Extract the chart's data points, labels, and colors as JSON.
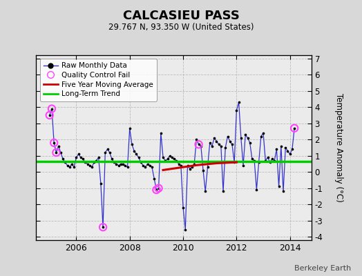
{
  "title": "CALCASIEU PASS",
  "subtitle": "29.767 N, 93.350 W (United States)",
  "ylabel": "Temperature Anomaly (°C)",
  "watermark": "Berkeley Earth",
  "ylim": [
    -4.2,
    7.2
  ],
  "yticks": [
    -4,
    -3,
    -2,
    -1,
    0,
    1,
    2,
    3,
    4,
    5,
    6,
    7
  ],
  "xlim": [
    2004.5,
    2014.8
  ],
  "xticks": [
    2006,
    2008,
    2010,
    2012,
    2014
  ],
  "long_term_trend_y": 0.65,
  "fig_bg_color": "#d8d8d8",
  "plot_bg_color": "#ebebeb",
  "raw_data": [
    [
      2005.0,
      3.5
    ],
    [
      2005.083,
      3.9
    ],
    [
      2005.167,
      1.8
    ],
    [
      2005.25,
      1.2
    ],
    [
      2005.333,
      1.6
    ],
    [
      2005.417,
      1.2
    ],
    [
      2005.5,
      0.8
    ],
    [
      2005.583,
      0.6
    ],
    [
      2005.667,
      0.4
    ],
    [
      2005.75,
      0.3
    ],
    [
      2005.833,
      0.5
    ],
    [
      2005.917,
      0.3
    ],
    [
      2006.0,
      0.9
    ],
    [
      2006.083,
      1.1
    ],
    [
      2006.167,
      0.9
    ],
    [
      2006.25,
      0.8
    ],
    [
      2006.333,
      0.6
    ],
    [
      2006.417,
      0.5
    ],
    [
      2006.5,
      0.4
    ],
    [
      2006.583,
      0.3
    ],
    [
      2006.667,
      0.6
    ],
    [
      2006.75,
      0.7
    ],
    [
      2006.833,
      0.9
    ],
    [
      2006.917,
      -0.7
    ],
    [
      2007.0,
      -3.4
    ],
    [
      2007.083,
      1.2
    ],
    [
      2007.167,
      1.4
    ],
    [
      2007.25,
      1.2
    ],
    [
      2007.333,
      0.8
    ],
    [
      2007.417,
      0.6
    ],
    [
      2007.5,
      0.5
    ],
    [
      2007.583,
      0.4
    ],
    [
      2007.667,
      0.5
    ],
    [
      2007.75,
      0.5
    ],
    [
      2007.833,
      0.4
    ],
    [
      2007.917,
      0.3
    ],
    [
      2008.0,
      2.7
    ],
    [
      2008.083,
      1.7
    ],
    [
      2008.167,
      1.3
    ],
    [
      2008.25,
      1.1
    ],
    [
      2008.333,
      0.9
    ],
    [
      2008.417,
      0.6
    ],
    [
      2008.5,
      0.4
    ],
    [
      2008.583,
      0.3
    ],
    [
      2008.667,
      0.5
    ],
    [
      2008.75,
      0.4
    ],
    [
      2008.833,
      0.3
    ],
    [
      2008.917,
      -0.4
    ],
    [
      2009.0,
      -1.1
    ],
    [
      2009.083,
      -1.0
    ],
    [
      2009.167,
      2.4
    ],
    [
      2009.25,
      0.9
    ],
    [
      2009.333,
      0.7
    ],
    [
      2009.417,
      0.8
    ],
    [
      2009.5,
      1.0
    ],
    [
      2009.583,
      0.9
    ],
    [
      2009.667,
      0.8
    ],
    [
      2009.75,
      0.7
    ],
    [
      2009.833,
      0.5
    ],
    [
      2009.917,
      0.4
    ],
    [
      2010.0,
      -2.2
    ],
    [
      2010.083,
      -3.55
    ],
    [
      2010.167,
      0.4
    ],
    [
      2010.25,
      0.2
    ],
    [
      2010.333,
      0.3
    ],
    [
      2010.417,
      0.5
    ],
    [
      2010.5,
      2.0
    ],
    [
      2010.583,
      1.7
    ],
    [
      2010.667,
      1.6
    ],
    [
      2010.75,
      0.1
    ],
    [
      2010.833,
      -1.2
    ],
    [
      2010.917,
      0.3
    ],
    [
      2011.0,
      1.8
    ],
    [
      2011.083,
      1.6
    ],
    [
      2011.167,
      2.1
    ],
    [
      2011.25,
      1.9
    ],
    [
      2011.333,
      1.7
    ],
    [
      2011.417,
      1.6
    ],
    [
      2011.5,
      -1.2
    ],
    [
      2011.583,
      1.5
    ],
    [
      2011.667,
      2.2
    ],
    [
      2011.75,
      1.9
    ],
    [
      2011.833,
      1.7
    ],
    [
      2011.917,
      0.6
    ],
    [
      2012.0,
      3.8
    ],
    [
      2012.083,
      4.3
    ],
    [
      2012.167,
      2.1
    ],
    [
      2012.25,
      0.4
    ],
    [
      2012.333,
      2.3
    ],
    [
      2012.417,
      2.1
    ],
    [
      2012.5,
      1.8
    ],
    [
      2012.583,
      0.8
    ],
    [
      2012.667,
      0.7
    ],
    [
      2012.75,
      -1.1
    ],
    [
      2012.833,
      0.6
    ],
    [
      2012.917,
      2.2
    ],
    [
      2013.0,
      2.4
    ],
    [
      2013.083,
      0.7
    ],
    [
      2013.167,
      0.9
    ],
    [
      2013.25,
      0.6
    ],
    [
      2013.333,
      0.8
    ],
    [
      2013.417,
      0.7
    ],
    [
      2013.5,
      1.4
    ],
    [
      2013.583,
      -0.9
    ],
    [
      2013.667,
      1.6
    ],
    [
      2013.75,
      -1.2
    ],
    [
      2013.833,
      1.5
    ],
    [
      2013.917,
      1.3
    ],
    [
      2014.0,
      1.1
    ],
    [
      2014.083,
      1.4
    ],
    [
      2014.167,
      2.7
    ]
  ],
  "qc_fail_points": [
    [
      2005.0,
      3.5
    ],
    [
      2005.083,
      3.9
    ],
    [
      2005.167,
      1.8
    ],
    [
      2005.25,
      1.2
    ],
    [
      2007.0,
      -3.4
    ],
    [
      2009.0,
      -1.1
    ],
    [
      2009.083,
      -1.0
    ],
    [
      2010.583,
      1.7
    ],
    [
      2014.167,
      2.7
    ]
  ],
  "moving_avg": [
    [
      2009.25,
      0.12
    ],
    [
      2009.5,
      0.18
    ],
    [
      2009.75,
      0.24
    ],
    [
      2010.0,
      0.3
    ],
    [
      2010.25,
      0.36
    ],
    [
      2010.5,
      0.42
    ],
    [
      2010.75,
      0.46
    ],
    [
      2011.0,
      0.5
    ],
    [
      2011.25,
      0.54
    ],
    [
      2011.5,
      0.56
    ],
    [
      2011.75,
      0.58
    ],
    [
      2012.0,
      0.6
    ]
  ],
  "line_color": "#3333cc",
  "marker_color": "#000000",
  "qc_color": "#ff44ff",
  "ma_color": "#cc0000",
  "trend_color": "#00cc00",
  "grid_color": "#bbbbbb"
}
